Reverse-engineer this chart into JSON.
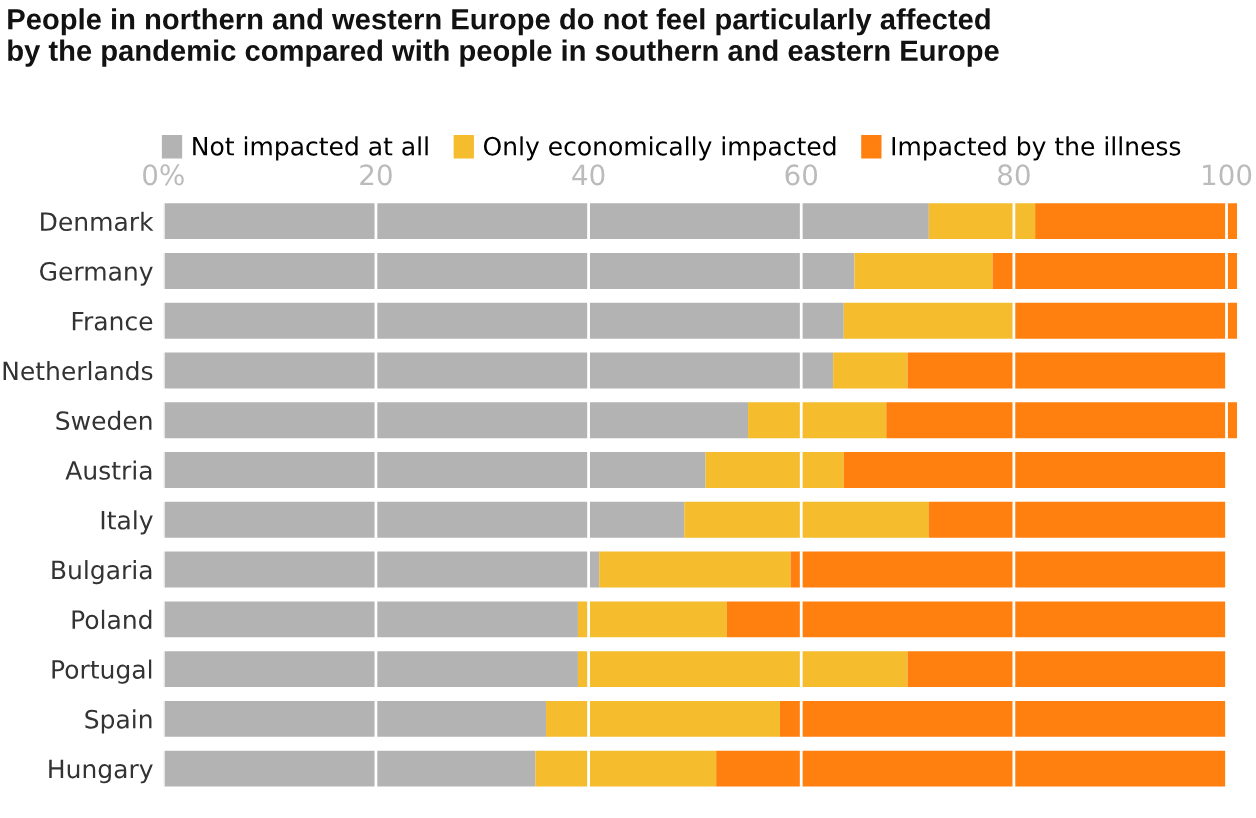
{
  "chart_data": {
    "type": "bar",
    "orientation": "horizontal",
    "stacked": true,
    "title": "People in northern and western Europe do not feel particularly affected\nby the pandemic compared with people in southern and eastern Europe",
    "categories": [
      "Denmark",
      "Germany",
      "France",
      "Netherlands",
      "Sweden",
      "Austria",
      "Italy",
      "Bulgaria",
      "Poland",
      "Portugal",
      "Spain",
      "Hungary"
    ],
    "series": [
      {
        "name": "Not impacted at all",
        "color": "#b3b3b3",
        "values": [
          72,
          65,
          64,
          63,
          55,
          51,
          49,
          41,
          39,
          39,
          36,
          35
        ]
      },
      {
        "name": "Only economically impacted",
        "color": "#f5bc2d",
        "values": [
          10,
          13,
          16,
          7,
          13,
          13,
          23,
          18,
          14,
          31,
          22,
          17
        ]
      },
      {
        "name": "Impacted by the illness",
        "color": "#ff7f0f",
        "values": [
          19,
          23,
          21,
          30,
          33,
          36,
          28,
          41,
          47,
          30,
          42,
          48
        ]
      }
    ],
    "xlim": [
      0,
      101
    ],
    "xticks": [
      {
        "value": 0,
        "label": "0%"
      },
      20,
      40,
      60,
      80,
      100
    ],
    "grid": "x",
    "legend": "top left"
  }
}
